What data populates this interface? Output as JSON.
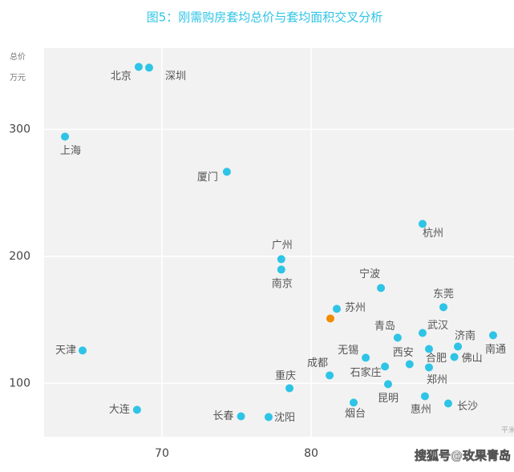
{
  "chart_data": {
    "type": "scatter",
    "title": "图5：刚需购房套均总价与套均面积交叉分析",
    "y_label": [
      "总价",
      "万元"
    ],
    "x_label": "平米",
    "watermark": "搜狐号@玫果青岛",
    "xlim": [
      62.1,
      93.6
    ],
    "ylim": [
      58,
      364
    ],
    "xticks": [
      70,
      80
    ],
    "yticks": [
      100,
      200,
      300
    ],
    "grid": true,
    "series": [
      {
        "color": "#2ec4e6",
        "labels": [
          "北京",
          "深圳",
          "上海",
          "厦门",
          "广州",
          "南京",
          "杭州",
          "宁波",
          "东莞",
          "苏州",
          "青岛",
          "武汉",
          "济南",
          "南通",
          "天津",
          "合肥",
          "佛山",
          "无锡",
          "西安",
          "成都",
          "石家庄",
          "郑州",
          "重庆",
          "昆明",
          "烟台",
          "惠州",
          "长沙",
          "大连",
          "长春",
          "沈阳"
        ],
        "x": [
          68.44,
          69.14,
          63.5,
          74.35,
          78.0,
          78.0,
          87.47,
          84.68,
          88.87,
          81.72,
          85.8,
          87.47,
          89.84,
          92.2,
          64.68,
          87.9,
          89.6,
          83.66,
          86.6,
          81.24,
          84.95,
          87.9,
          78.55,
          85.16,
          82.85,
          87.63,
          89.19,
          68.33,
          75.3,
          77.15
        ],
        "values": [
          349.2,
          348.6,
          294.3,
          266.6,
          197.8,
          189.6,
          225.6,
          175.1,
          160,
          158.7,
          136,
          139.7,
          129,
          137.9,
          125.9,
          127.1,
          120.8,
          120.2,
          115.1,
          106.3,
          113.3,
          112.6,
          96.2,
          99.4,
          84.9,
          89.9,
          84.2,
          79.2,
          74.1,
          73.5
        ]
      },
      {
        "color": "#f08c00",
        "x": [
          81.29
        ],
        "values": [
          151.1
        ]
      }
    ]
  }
}
